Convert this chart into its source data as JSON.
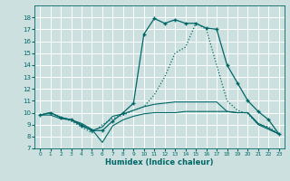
{
  "xlabel": "Humidex (Indice chaleur)",
  "x_ticks": [
    0,
    1,
    2,
    3,
    4,
    5,
    6,
    7,
    8,
    9,
    10,
    11,
    12,
    13,
    14,
    15,
    16,
    17,
    18,
    19,
    20,
    21,
    22,
    23
  ],
  "ylim": [
    7,
    19
  ],
  "xlim": [
    -0.5,
    23.5
  ],
  "y_ticks": [
    7,
    8,
    9,
    10,
    11,
    12,
    13,
    14,
    15,
    16,
    17,
    18
  ],
  "bg_color": "#cce0e0",
  "grid_color": "#ffffff",
  "line_color": "#006666",
  "series": [
    {
      "data": [
        9.8,
        10.0,
        9.6,
        9.4,
        8.9,
        8.5,
        8.5,
        9.3,
        10.0,
        10.8,
        16.6,
        17.9,
        17.5,
        17.8,
        17.5,
        17.5,
        17.1,
        17.0,
        14.0,
        12.5,
        11.0,
        10.1,
        9.4,
        8.2
      ],
      "linestyle": "-",
      "linewidth": 0.9,
      "marker": "+",
      "markersize": 3.5,
      "markeredgewidth": 1.0,
      "zorder": 4
    },
    {
      "data": [
        9.8,
        10.0,
        9.6,
        9.3,
        8.8,
        8.3,
        9.0,
        9.5,
        9.8,
        10.2,
        10.5,
        11.5,
        13.0,
        15.0,
        15.5,
        17.5,
        17.0,
        14.0,
        11.0,
        10.2,
        9.9,
        9.0,
        8.8,
        8.2
      ],
      "linestyle": ":",
      "linewidth": 0.9,
      "marker": null,
      "markersize": 0,
      "markeredgewidth": 0,
      "zorder": 3
    },
    {
      "data": [
        9.8,
        9.8,
        9.5,
        9.4,
        9.0,
        8.5,
        8.8,
        9.7,
        9.9,
        10.2,
        10.5,
        10.7,
        10.8,
        10.9,
        10.9,
        10.9,
        10.9,
        10.9,
        10.1,
        10.0,
        10.0,
        9.1,
        8.7,
        8.2
      ],
      "linestyle": "-",
      "linewidth": 0.8,
      "marker": null,
      "markersize": 0,
      "markeredgewidth": 0,
      "zorder": 2
    },
    {
      "data": [
        9.8,
        10.0,
        9.6,
        9.4,
        9.1,
        8.6,
        7.5,
        8.9,
        9.4,
        9.7,
        9.9,
        10.0,
        10.0,
        10.0,
        10.1,
        10.1,
        10.1,
        10.1,
        10.1,
        10.0,
        10.0,
        9.0,
        8.6,
        8.2
      ],
      "linestyle": "-",
      "linewidth": 0.8,
      "marker": null,
      "markersize": 0,
      "markeredgewidth": 0,
      "zorder": 2
    }
  ]
}
